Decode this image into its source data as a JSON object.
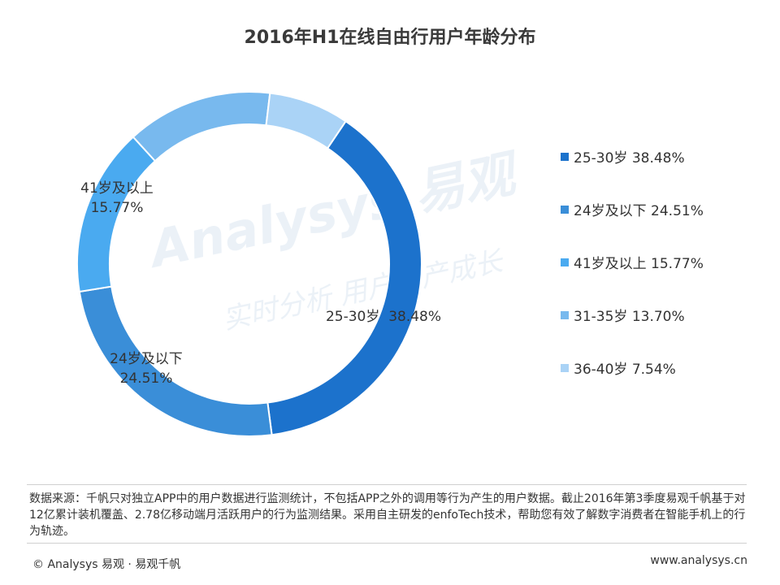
{
  "chart_data": {
    "type": "pie",
    "title": "2016年H1在线自由行用户年龄分布",
    "categories": [
      "25-30岁",
      "24岁及以下",
      "41岁及以上",
      "31-35岁",
      "36-40岁"
    ],
    "values": [
      38.48,
      24.51,
      15.77,
      13.7,
      7.54
    ],
    "value_labels": [
      "38.48%",
      "24.51%",
      "15.77%",
      "13.70%",
      "7.54%"
    ],
    "colors": [
      "#1c72cc",
      "#3a8ed8",
      "#4aaaf0",
      "#78b9ee",
      "#aad3f6"
    ],
    "donut": true,
    "legend_position": "right",
    "slice_labels": [
      {
        "name": "25-30岁",
        "value": "38.48%"
      },
      {
        "name": "24岁及以下",
        "value": "24.51%"
      },
      {
        "name": "41岁及以上",
        "value": "15.77%"
      }
    ]
  },
  "legend": [
    {
      "label": "25-30岁",
      "value": "38.48%"
    },
    {
      "label": "24岁及以下",
      "value": "24.51%"
    },
    {
      "label": "41岁及以上",
      "value": "15.77%"
    },
    {
      "label": "31-35岁",
      "value": "13.70%"
    },
    {
      "label": "36-40岁",
      "value": "7.54%"
    }
  ],
  "watermark": {
    "main": "Analysys 易观",
    "sub": "实时分析 用户资产成长"
  },
  "source_note": "数据来源：千帆只对独立APP中的用户数据进行监测统计，不包括APP之外的调用等行为产生的用户数据。截止2016年第3季度易观千帆基于对12亿累计装机覆盖、2.78亿移动端月活跃用户的行为监测结果。采用自主研发的enfoTech技术，帮助您有效了解数字消费者在智能手机上的行为轨迹。",
  "footer": {
    "copyright": "© Analysys 易观 · 易观千帆",
    "website": "www.analysys.cn"
  }
}
